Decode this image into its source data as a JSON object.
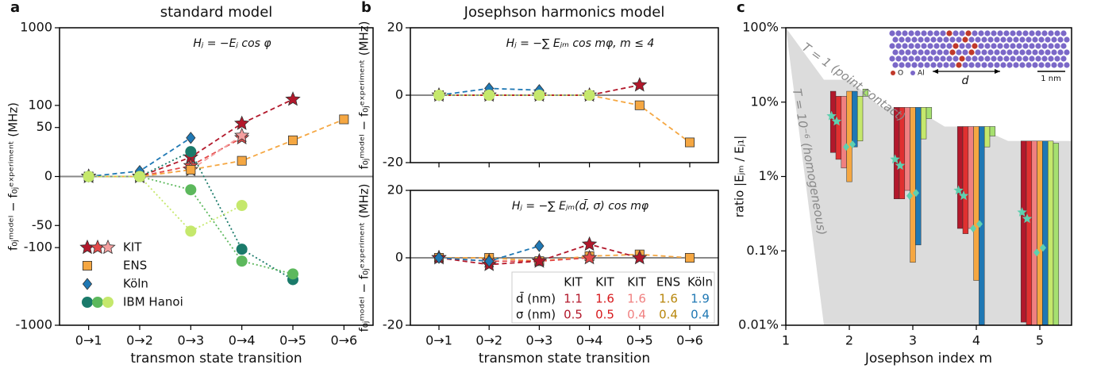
{
  "chart_data": [
    {
      "type": "line",
      "label": "a",
      "title": "standard model",
      "annotation": "Hⱼ = −Eⱼ cos φ",
      "xlabel": "transmon state transition",
      "ylabel": "f₀ⱼᵐᵒᵈᵉˡ − f₀ⱼᵉˣᵖᵉʳⁱᵐᵉⁿᵗ (MHz)",
      "categories": [
        "0→1",
        "0→2",
        "0→3",
        "0→4",
        "0→5",
        "0→6"
      ],
      "yscale": "asinh",
      "ylim": [
        -1000,
        1000
      ],
      "yticks": [
        -1000,
        -100,
        -50,
        0,
        50,
        100,
        1000
      ],
      "zero_line": true,
      "legend": "lower left",
      "series": [
        {
          "name": "KIT",
          "color": "#b2182b",
          "marker": "star",
          "dash": "dashed",
          "values": [
            0,
            0,
            15,
            57,
            120,
            null
          ]
        },
        {
          "name": "KIT",
          "color": "#e34a4a",
          "marker": "star",
          "dash": "dashed",
          "values": [
            0,
            0,
            8,
            35,
            null,
            null
          ]
        },
        {
          "name": "KIT",
          "color": "#f4a0a0",
          "marker": "star",
          "dash": "dashed",
          "values": [
            0,
            0,
            5,
            38,
            null,
            null
          ]
        },
        {
          "name": "ENS",
          "color": "#f5a742",
          "marker": "square",
          "dash": "dashed",
          "values": [
            0,
            0,
            5,
            12,
            32,
            65
          ]
        },
        {
          "name": "Köln",
          "color": "#1f78b4",
          "marker": "diamond",
          "dash": "dashed",
          "values": [
            0,
            4,
            35,
            null,
            null,
            null
          ]
        },
        {
          "name": "IBM Hanoi",
          "color": "#1a7a6a",
          "marker": "circle",
          "dash": "dotted",
          "values": [
            0,
            0,
            20,
            -105,
            -260,
            null
          ]
        },
        {
          "name": "IBM Hanoi",
          "color": "#5cb85c",
          "marker": "circle",
          "dash": "dotted",
          "values": [
            0,
            0,
            -10,
            -150,
            -220,
            null
          ]
        },
        {
          "name": "IBM Hanoi",
          "color": "#c5e86c",
          "marker": "circle",
          "dash": "dotted",
          "values": [
            0,
            0,
            -60,
            -24,
            null,
            null
          ]
        }
      ]
    },
    {
      "type": "line",
      "label": "b",
      "title": "Josephson harmonics model",
      "annotation": "Hⱼ = −∑ Eⱼₘ cos mφ,   m ≤ 4",
      "ylabel": "f₀ⱼᵐᵒᵈᵉˡ − f₀ⱼᵉˣᵖᵉʳⁱᵐᵉⁿᵗ (MHz)",
      "categories": [
        null,
        null,
        null,
        null,
        null,
        null
      ],
      "ylim": [
        -20,
        20
      ],
      "yticks": [
        -20,
        0,
        20
      ],
      "zero_line": true,
      "series": [
        {
          "color": "#f5a742",
          "marker": "square",
          "dash": "dashed",
          "values": [
            0,
            0,
            0,
            0,
            -3,
            -14
          ]
        },
        {
          "color": "#b2182b",
          "marker": "star",
          "dash": "dashed",
          "values": [
            0,
            0,
            0,
            0,
            3,
            null
          ]
        },
        {
          "color": "#1f78b4",
          "marker": "diamond",
          "dash": "dashed",
          "values": [
            0,
            2,
            1.5,
            null,
            null,
            null
          ]
        },
        {
          "color": "#c5e86c",
          "marker": "circle",
          "dash": "dotted",
          "values": [
            0,
            0,
            0,
            0,
            null,
            null
          ]
        }
      ]
    },
    {
      "type": "line",
      "annotation": "Hⱼ = −∑ Eⱼₘ(d̄, σ) cos mφ",
      "xlabel": "transmon state transition",
      "ylabel": "f₀ⱼᵐᵒᵈᵉˡ − f₀ⱼᵉˣᵖᵉʳⁱᵐᵉⁿᵗ (MHz)",
      "categories": [
        "0→1",
        "0→2",
        "0→3",
        "0→4",
        "0→5",
        "0→6"
      ],
      "ylim": [
        -20,
        20
      ],
      "yticks": [
        -20,
        0,
        20
      ],
      "zero_line": true,
      "series": [
        {
          "color": "#f5a742",
          "marker": "square",
          "dash": "dashed",
          "values": [
            0,
            0,
            -1,
            0.5,
            1,
            0
          ]
        },
        {
          "color": "#e34a4a",
          "marker": "star",
          "dash": "dashed",
          "values": [
            0,
            -1,
            -1,
            0,
            null,
            null
          ]
        },
        {
          "color": "#b2182b",
          "marker": "star",
          "dash": "dashed",
          "values": [
            0,
            -2,
            -1,
            4,
            0,
            null
          ]
        },
        {
          "color": "#1f78b4",
          "marker": "diamond",
          "dash": "dashed",
          "values": [
            0,
            -1,
            3.5,
            null,
            null,
            null
          ]
        }
      ],
      "table": {
        "columns": [
          "KIT",
          "KIT",
          "KIT",
          "ENS",
          "Köln"
        ],
        "colors": [
          "#b2182b",
          "#d7191c",
          "#f08080",
          "#b8860b",
          "#1f78b4"
        ],
        "rows": [
          {
            "label": "d̄ (nm)",
            "values": [
              1.1,
              1.6,
              1.6,
              1.6,
              1.9
            ]
          },
          {
            "label": "σ (nm)",
            "values": [
              0.5,
              0.5,
              0.4,
              0.4,
              0.4
            ]
          }
        ]
      }
    },
    {
      "type": "range_bar",
      "label": "c",
      "xlabel": "Josephson index m",
      "ylabel": "ratio |Eⱼₘ / Eⱼ₁|",
      "xlim": [
        1,
        5.5
      ],
      "xticks": [
        1,
        2,
        3,
        4,
        5
      ],
      "yscale": "log",
      "ylim": [
        0.01,
        100
      ],
      "yticks": [
        {
          "value": 0.01,
          "label": "0.01%"
        },
        {
          "value": 0.1,
          "label": "0.1%"
        },
        {
          "value": 1,
          "label": "1%"
        },
        {
          "value": 10,
          "label": "10%"
        },
        {
          "value": 100,
          "label": "100%"
        }
      ],
      "shade": {
        "x": [
          1,
          1.6,
          2,
          2.5,
          3,
          3.5,
          4,
          4.5,
          5.5
        ],
        "upper": [
          100,
          20,
          20,
          8.5,
          8.5,
          4.7,
          4.7,
          3,
          3
        ],
        "lower": [
          100,
          0.01,
          0.01,
          0.01,
          0.01,
          0.01,
          0.01,
          0.01,
          0.01
        ]
      },
      "annotations": [
        "T = 1 (point contact)",
        "T = 10⁻⁶ (homogeneous)",
        "d",
        "1 nm",
        "O",
        "Al"
      ],
      "series": [
        {
          "type": "range_bar",
          "color": "#b2182b",
          "x": [
            2,
            3,
            4,
            5
          ],
          "low": [
            2.1,
            0.5,
            0.2,
            0.011
          ],
          "high": [
            14,
            8.5,
            4.7,
            3
          ]
        },
        {
          "type": "range_bar",
          "color": "#e03030",
          "x": [
            2,
            3,
            4,
            5
          ],
          "low": [
            1.7,
            0.5,
            0.17,
            0.01
          ],
          "high": [
            12,
            8.5,
            4.7,
            3
          ]
        },
        {
          "type": "range_bar",
          "color": "#f08080",
          "x": [
            2,
            3,
            4,
            5
          ],
          "low": [
            1.3,
            0.65,
            0.2,
            0.01
          ],
          "high": [
            12,
            8.5,
            4.7,
            3
          ]
        },
        {
          "type": "range_bar",
          "color": "#f5a742",
          "x": [
            2,
            3,
            4,
            5
          ],
          "low": [
            0.85,
            0.07,
            0.04,
            0.01
          ],
          "high": [
            14,
            8.5,
            4.7,
            3
          ]
        },
        {
          "type": "range_bar",
          "color": "#1f78b4",
          "x": [
            2,
            3,
            4,
            5
          ],
          "low": [
            2.5,
            0.12,
            0.01,
            0.01
          ],
          "high": [
            14,
            8.5,
            4.7,
            3
          ]
        },
        {
          "type": "range_bar",
          "color": "#c5e86c",
          "x": [
            2,
            3,
            4,
            5
          ],
          "low": [
            3,
            3.2,
            2.5,
            0.01
          ],
          "high": [
            12,
            8.5,
            4.7,
            3
          ]
        },
        {
          "type": "range_bar",
          "color": "#a6e070",
          "x": [
            2,
            3,
            4,
            5
          ],
          "low": [
            12,
            6,
            3.5,
            0.01
          ],
          "high": [
            15,
            8.5,
            4.7,
            2.8
          ]
        },
        {
          "type": "scatter",
          "color": "#5fd0b0",
          "marker": "star",
          "x": [
            1.72,
            2.72,
            3.72,
            4.72
          ],
          "values": [
            6.5,
            1.7,
            0.65,
            0.33
          ]
        },
        {
          "type": "scatter",
          "color": "#5fd0b0",
          "marker": "star",
          "x": [
            1.8,
            2.8,
            3.8,
            4.8
          ],
          "values": [
            5.5,
            1.4,
            0.55,
            0.27
          ]
        },
        {
          "type": "scatter",
          "color": "#5fd0b0",
          "marker": "diamond",
          "x": [
            1.95,
            2.95,
            3.95,
            4.95
          ],
          "values": [
            2.5,
            0.55,
            0.2,
            0.095
          ]
        },
        {
          "type": "scatter",
          "color": "#5fd0b0",
          "marker": "diamond",
          "x": [
            2.05,
            3.05,
            4.05,
            5.05
          ],
          "values": [
            2.7,
            0.6,
            0.23,
            0.11
          ]
        }
      ]
    }
  ]
}
